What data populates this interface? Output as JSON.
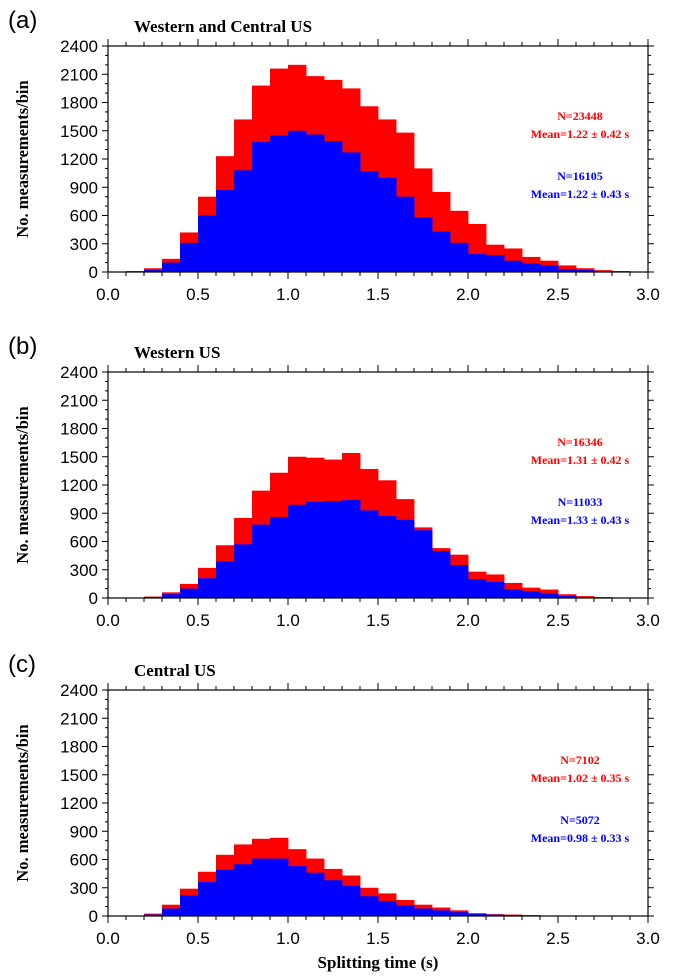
{
  "colors": {
    "all": "#ff0000",
    "subset": "#0000ff",
    "axis": "#000000",
    "background": "#ffffff"
  },
  "chart_data": [
    {
      "type": "bar",
      "letter": "(a)",
      "title": "Western and Central US",
      "ylabel": "No. measurements/bin",
      "xlabel": "",
      "xlim": [
        0,
        3
      ],
      "ylim": [
        0,
        2400
      ],
      "xticks": [
        "0.0",
        "0.5",
        "1.0",
        "1.5",
        "2.0",
        "2.5",
        "3.0"
      ],
      "yticks": [
        "0",
        "300",
        "600",
        "900",
        "1200",
        "1500",
        "1800",
        "2100",
        "2400"
      ],
      "bin_width": 0.1,
      "bin_starts": [
        0.0,
        0.1,
        0.2,
        0.3,
        0.4,
        0.5,
        0.6,
        0.7,
        0.8,
        0.9,
        1.0,
        1.1,
        1.2,
        1.3,
        1.4,
        1.5,
        1.6,
        1.7,
        1.8,
        1.9,
        2.0,
        2.1,
        2.2,
        2.3,
        2.4,
        2.5,
        2.6,
        2.7,
        2.8,
        2.9
      ],
      "series": [
        {
          "name": "N=23448",
          "stat": "Mean=1.22 ± 0.42 s",
          "values": [
            5,
            10,
            40,
            140,
            420,
            800,
            1230,
            1620,
            1980,
            2160,
            2200,
            2080,
            2040,
            1950,
            1760,
            1620,
            1480,
            1100,
            850,
            650,
            510,
            290,
            250,
            160,
            120,
            70,
            40,
            20,
            10,
            5
          ]
        },
        {
          "name": "N=16105",
          "stat": "Mean=1.22 ± 0.43 s",
          "values": [
            3,
            5,
            20,
            100,
            310,
            600,
            870,
            1080,
            1380,
            1450,
            1500,
            1460,
            1390,
            1270,
            1070,
            1000,
            800,
            580,
            430,
            310,
            190,
            180,
            120,
            90,
            70,
            30,
            20,
            10,
            5,
            3
          ]
        }
      ]
    },
    {
      "type": "bar",
      "letter": "(b)",
      "title": "Western US",
      "ylabel": "No. measurements/bin",
      "xlabel": "",
      "xlim": [
        0,
        3
      ],
      "ylim": [
        0,
        2400
      ],
      "xticks": [
        "0.0",
        "0.5",
        "1.0",
        "1.5",
        "2.0",
        "2.5",
        "3.0"
      ],
      "yticks": [
        "0",
        "300",
        "600",
        "900",
        "1200",
        "1500",
        "1800",
        "2100",
        "2400"
      ],
      "bin_width": 0.1,
      "bin_starts": [
        0.0,
        0.1,
        0.2,
        0.3,
        0.4,
        0.5,
        0.6,
        0.7,
        0.8,
        0.9,
        1.0,
        1.1,
        1.2,
        1.3,
        1.4,
        1.5,
        1.6,
        1.7,
        1.8,
        1.9,
        2.0,
        2.1,
        2.2,
        2.3,
        2.4,
        2.5,
        2.6,
        2.7,
        2.8,
        2.9
      ],
      "series": [
        {
          "name": "N=16346",
          "stat": "Mean=1.31 ± 0.42 s",
          "values": [
            3,
            5,
            15,
            60,
            150,
            320,
            560,
            850,
            1140,
            1330,
            1500,
            1490,
            1470,
            1540,
            1370,
            1250,
            1050,
            750,
            530,
            460,
            280,
            250,
            160,
            110,
            90,
            40,
            20,
            10,
            5,
            3
          ]
        },
        {
          "name": "N=11033",
          "stat": "Mean=1.33 ± 0.43 s",
          "values": [
            2,
            3,
            10,
            40,
            100,
            210,
            390,
            570,
            780,
            860,
            990,
            1020,
            1030,
            1040,
            930,
            870,
            830,
            720,
            500,
            350,
            200,
            170,
            90,
            70,
            50,
            20,
            10,
            5,
            2,
            1
          ]
        }
      ]
    },
    {
      "type": "bar",
      "letter": "(c)",
      "title": "Central US",
      "ylabel": "No. measurements/bin",
      "xlabel": "Splitting time (s)",
      "xlim": [
        0,
        3
      ],
      "ylim": [
        0,
        2400
      ],
      "xticks": [
        "0.0",
        "0.5",
        "1.0",
        "1.5",
        "2.0",
        "2.5",
        "3.0"
      ],
      "yticks": [
        "0",
        "300",
        "600",
        "900",
        "1200",
        "1500",
        "1800",
        "2100",
        "2400"
      ],
      "bin_width": 0.1,
      "bin_starts": [
        0.0,
        0.1,
        0.2,
        0.3,
        0.4,
        0.5,
        0.6,
        0.7,
        0.8,
        0.9,
        1.0,
        1.1,
        1.2,
        1.3,
        1.4,
        1.5,
        1.6,
        1.7,
        1.8,
        1.9,
        2.0,
        2.1,
        2.2,
        2.3,
        2.4,
        2.5,
        2.6,
        2.7,
        2.8,
        2.9
      ],
      "series": [
        {
          "name": "N=7102",
          "stat": "Mean=1.02 ± 0.35 s",
          "values": [
            3,
            5,
            25,
            120,
            290,
            470,
            650,
            760,
            820,
            830,
            710,
            610,
            500,
            430,
            300,
            240,
            170,
            120,
            90,
            60,
            30,
            20,
            15,
            10,
            5,
            3,
            2,
            1,
            1,
            0
          ]
        },
        {
          "name": "N=5072",
          "stat": "Mean=0.98 ± 0.33 s",
          "values": [
            2,
            3,
            15,
            80,
            220,
            360,
            490,
            550,
            610,
            610,
            530,
            460,
            380,
            320,
            210,
            160,
            110,
            80,
            60,
            40,
            20,
            15,
            10,
            5,
            3,
            2,
            1,
            1,
            0,
            0
          ]
        }
      ]
    }
  ]
}
